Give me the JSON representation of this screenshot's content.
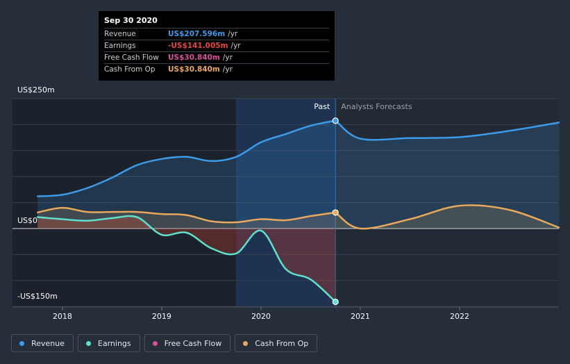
{
  "tooltip": {
    "date": "Sep 30 2020",
    "rows": [
      {
        "label": "Revenue",
        "value": "US$207.596m",
        "unit": "/yr",
        "color": "#3d9ae8"
      },
      {
        "label": "Earnings",
        "value": "-US$141.005m",
        "unit": "/yr",
        "color": "#e8473f"
      },
      {
        "label": "Free Cash Flow",
        "value": "US$30.840m",
        "unit": "/yr",
        "color": "#d94f9b"
      },
      {
        "label": "Cash From Op",
        "value": "US$30.840m",
        "unit": "/yr",
        "color": "#e9a85b"
      }
    ]
  },
  "chart_data": {
    "type": "line",
    "title": "",
    "y_labels": [
      "US$250m",
      "US$0",
      "-US$150m"
    ],
    "ylim": [
      -150,
      250
    ],
    "xlim": [
      2017.7,
      2023.0
    ],
    "x_ticks": [
      2018,
      2019,
      2020,
      2021,
      2022
    ],
    "x_tick_labels": [
      "2018",
      "2019",
      "2020",
      "2021",
      "2022"
    ],
    "past_label": "Past",
    "forecast_label": "Analysts Forecasts",
    "past_end": 2020.75,
    "highlight_start": 2019.75,
    "series": [
      {
        "name": "Revenue",
        "color": "#3d9ae8",
        "points": [
          [
            2017.75,
            62
          ],
          [
            2018.0,
            65
          ],
          [
            2018.25,
            78
          ],
          [
            2018.5,
            98
          ],
          [
            2018.75,
            122
          ],
          [
            2019.0,
            134
          ],
          [
            2019.25,
            138
          ],
          [
            2019.5,
            130
          ],
          [
            2019.75,
            138
          ],
          [
            2020.0,
            166
          ],
          [
            2020.25,
            182
          ],
          [
            2020.5,
            198
          ],
          [
            2020.75,
            207.596
          ]
        ],
        "forecast": [
          [
            2020.75,
            207.596
          ],
          [
            2021.0,
            173
          ],
          [
            2021.5,
            174
          ],
          [
            2022.0,
            176
          ],
          [
            2022.5,
            188
          ],
          [
            2023.0,
            204
          ]
        ]
      },
      {
        "name": "Earnings",
        "color": "#5ee0cf",
        "points": [
          [
            2017.75,
            22
          ],
          [
            2018.0,
            18
          ],
          [
            2018.25,
            15
          ],
          [
            2018.5,
            20
          ],
          [
            2018.75,
            22
          ],
          [
            2019.0,
            -12
          ],
          [
            2019.25,
            -8
          ],
          [
            2019.5,
            -38
          ],
          [
            2019.75,
            -48
          ],
          [
            2020.0,
            -4
          ],
          [
            2020.25,
            -78
          ],
          [
            2020.5,
            -98
          ],
          [
            2020.75,
            -141.005
          ]
        ],
        "forecast": []
      },
      {
        "name": "Free Cash Flow",
        "color": "#d94f9b",
        "points": [
          [
            2017.75,
            31
          ],
          [
            2018.0,
            40
          ],
          [
            2018.25,
            32
          ],
          [
            2018.5,
            32
          ],
          [
            2018.75,
            32
          ],
          [
            2019.0,
            28
          ],
          [
            2019.25,
            26
          ],
          [
            2019.5,
            14
          ],
          [
            2019.75,
            12
          ],
          [
            2020.0,
            18
          ],
          [
            2020.25,
            16
          ],
          [
            2020.5,
            24
          ],
          [
            2020.75,
            30.84
          ]
        ],
        "forecast": []
      },
      {
        "name": "Cash From Op",
        "color": "#e9a85b",
        "points": [
          [
            2017.75,
            31
          ],
          [
            2018.0,
            40
          ],
          [
            2018.25,
            32
          ],
          [
            2018.5,
            32
          ],
          [
            2018.75,
            32
          ],
          [
            2019.0,
            28
          ],
          [
            2019.25,
            26
          ],
          [
            2019.5,
            14
          ],
          [
            2019.75,
            12
          ],
          [
            2020.0,
            18
          ],
          [
            2020.25,
            16
          ],
          [
            2020.5,
            24
          ],
          [
            2020.75,
            30.84
          ]
        ],
        "forecast": [
          [
            2020.75,
            30.84
          ],
          [
            2021.0,
            0
          ],
          [
            2021.5,
            18
          ],
          [
            2022.0,
            44
          ],
          [
            2022.5,
            36
          ],
          [
            2023.0,
            2
          ]
        ]
      }
    ]
  },
  "legend": [
    {
      "label": "Revenue",
      "color": "#3d9ae8"
    },
    {
      "label": "Earnings",
      "color": "#5ee0cf"
    },
    {
      "label": "Free Cash Flow",
      "color": "#d94f9b"
    },
    {
      "label": "Cash From Op",
      "color": "#e9a85b"
    }
  ]
}
